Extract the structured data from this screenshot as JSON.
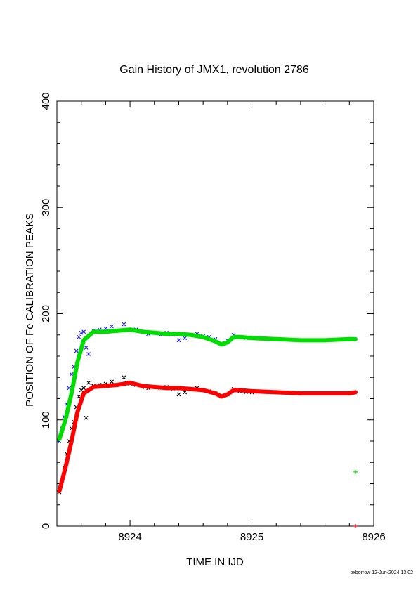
{
  "chart_data": {
    "type": "scatter",
    "title": "Gain History of JMX1, revolution 2786",
    "xlabel": "TIME IN IJD",
    "ylabel": "POSITION OF Fe CALIBRATION PEAKS",
    "xlim": [
      8923.4,
      8926.0
    ],
    "ylim": [
      0,
      400
    ],
    "xticks": [
      "8924",
      "8925",
      "8926"
    ],
    "yticks": [
      "0",
      "100",
      "200",
      "300",
      "400"
    ],
    "grid": false,
    "colors": {
      "raw_high": "#1a1aff",
      "raw_low": "#000000",
      "fit_high": "#00dd00",
      "fit_low": "#ff0000"
    },
    "series": [
      {
        "kind": "raw",
        "marker": "x",
        "color": "#1a1aff",
        "x": [
          8923.42,
          8923.44,
          8923.46,
          8923.48,
          8923.5,
          8923.52,
          8923.54,
          8923.56,
          8923.58,
          8923.6,
          8923.62,
          8923.64,
          8923.66,
          8923.7,
          8923.75,
          8923.8,
          8923.85,
          8923.9,
          8923.95,
          8924.0,
          8924.05,
          8924.1,
          8924.15,
          8924.2,
          8924.25,
          8924.3,
          8924.35,
          8924.4,
          8924.45,
          8924.5,
          8924.55,
          8924.6,
          8924.65,
          8924.7,
          8924.75,
          8924.8,
          8924.85,
          8924.9,
          8924.95,
          8925.0
        ],
        "y": [
          80,
          92,
          103,
          115,
          130,
          143,
          150,
          165,
          178,
          182,
          183,
          168,
          162,
          184,
          185,
          186,
          188,
          184,
          190,
          185,
          185,
          183,
          181,
          182,
          180,
          182,
          180,
          175,
          177,
          180,
          181,
          179,
          178,
          176,
          172,
          175,
          180,
          178,
          177,
          177
        ]
      },
      {
        "kind": "raw",
        "marker": "x",
        "color": "#000000",
        "x": [
          8923.42,
          8923.44,
          8923.46,
          8923.48,
          8923.5,
          8923.52,
          8923.54,
          8923.56,
          8923.58,
          8923.6,
          8923.62,
          8923.64,
          8923.66,
          8923.7,
          8923.75,
          8923.8,
          8923.85,
          8923.9,
          8923.95,
          8924.0,
          8924.05,
          8924.1,
          8924.15,
          8924.2,
          8924.25,
          8924.3,
          8924.35,
          8924.4,
          8924.45,
          8924.5,
          8924.55,
          8924.6,
          8924.65,
          8924.7,
          8924.75,
          8924.8,
          8924.85,
          8924.9,
          8924.95,
          8925.0
        ],
        "y": [
          32,
          42,
          55,
          68,
          80,
          92,
          98,
          112,
          122,
          128,
          130,
          102,
          135,
          132,
          133,
          134,
          136,
          133,
          140,
          134,
          133,
          131,
          130,
          131,
          130,
          131,
          129,
          124,
          126,
          129,
          130,
          128,
          127,
          125,
          122,
          124,
          129,
          127,
          126,
          126
        ]
      },
      {
        "kind": "fit",
        "marker": "+",
        "color": "#00dd00",
        "x": [
          8923.42,
          8923.47,
          8923.52,
          8923.57,
          8923.62,
          8923.7,
          8923.8,
          8923.9,
          8924.0,
          8924.1,
          8924.2,
          8924.3,
          8924.4,
          8924.5,
          8924.6,
          8924.7,
          8924.75,
          8924.8,
          8924.85,
          8924.9,
          8925.0,
          8925.2,
          8925.4,
          8925.6,
          8925.8,
          8925.85
        ],
        "y": [
          82,
          100,
          125,
          155,
          175,
          183,
          183,
          184,
          185,
          183,
          182,
          181,
          181,
          180,
          178,
          174,
          171,
          173,
          178,
          178,
          177,
          176,
          175,
          175,
          176,
          176
        ]
      },
      {
        "kind": "fit",
        "marker": "+",
        "color": "#ff0000",
        "x": [
          8923.42,
          8923.47,
          8923.52,
          8923.57,
          8923.62,
          8923.7,
          8923.8,
          8923.9,
          8924.0,
          8924.1,
          8924.2,
          8924.3,
          8924.4,
          8924.5,
          8924.6,
          8924.7,
          8924.75,
          8924.8,
          8924.85,
          8924.9,
          8925.0,
          8925.2,
          8925.4,
          8925.6,
          8925.8,
          8925.85
        ],
        "y": [
          33,
          55,
          80,
          108,
          125,
          131,
          132,
          133,
          135,
          132,
          131,
          130,
          130,
          129,
          128,
          125,
          122,
          124,
          128,
          128,
          127,
          126,
          125,
          125,
          125,
          126
        ]
      },
      {
        "kind": "outlier",
        "marker": "+",
        "color": "#00dd00",
        "x": [
          8925.85
        ],
        "y": [
          51
        ]
      },
      {
        "kind": "outlier",
        "marker": "+",
        "color": "#ff0000",
        "x": [
          8925.85
        ],
        "y": [
          0
        ]
      }
    ]
  },
  "footer": "oxborrow 12-Jun-2024 13:02"
}
